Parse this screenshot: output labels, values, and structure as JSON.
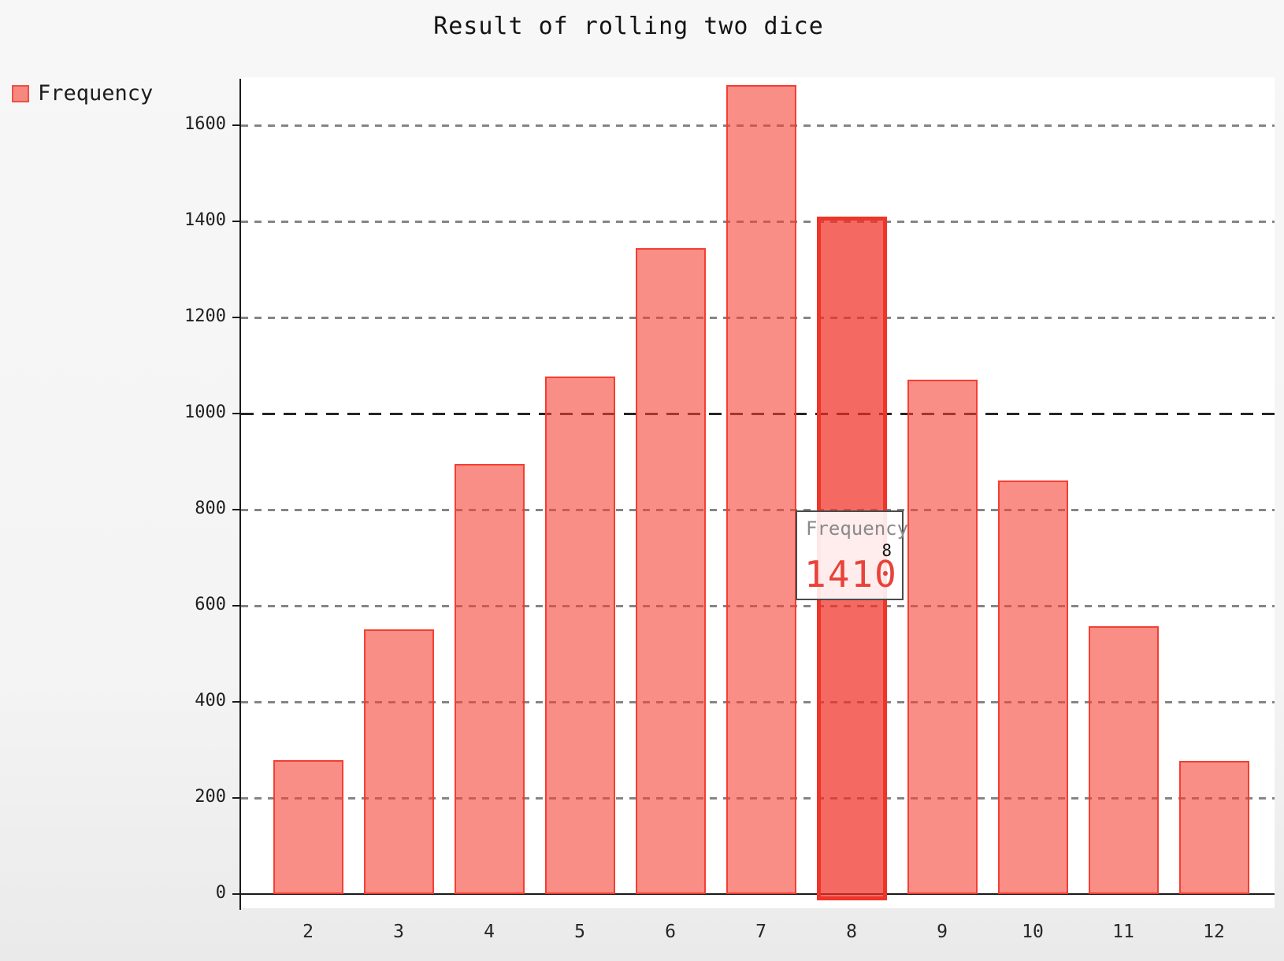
{
  "title": "Result of rolling two dice",
  "legend": {
    "label": "Frequency"
  },
  "tooltip": {
    "series_label": "Frequency",
    "category": "8",
    "value": "1410"
  },
  "chart_data": {
    "type": "bar",
    "title": "Result of rolling two dice",
    "categories": [
      "2",
      "3",
      "4",
      "5",
      "6",
      "7",
      "8",
      "9",
      "10",
      "11",
      "12"
    ],
    "series": [
      {
        "name": "Frequency",
        "values": [
          278,
          550,
          895,
          1077,
          1345,
          1683,
          1410,
          1071,
          860,
          557,
          277
        ]
      }
    ],
    "xlabel": "",
    "ylabel": "",
    "ylim": [
      0,
      1700
    ],
    "yticks": [
      0,
      200,
      400,
      600,
      800,
      1000,
      1200,
      1400,
      1600
    ],
    "emphasized_gridline": 1000,
    "highlighted_category": "8",
    "highlighted_value": 1410,
    "grid": "dashed-horizontal",
    "legend_position": "top-left",
    "colors": {
      "bar_fill": "#f5817a",
      "bar_border": "#f4372c",
      "bar_hover_fill": "#f1605a",
      "bar_hover_border": "#ee352a",
      "tooltip_value_text": "#e8423a",
      "background": "#f5f5f5",
      "plot_background": "#ffffff",
      "gridline": "#858585",
      "emphasized_gridline_color": "#262626",
      "axis": "#1a1a1a"
    }
  }
}
